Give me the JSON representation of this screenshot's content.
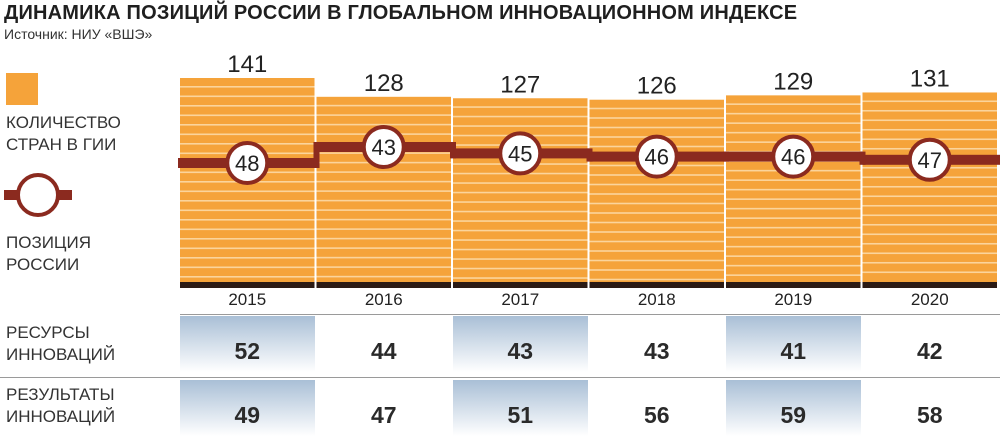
{
  "title": "ДИНАМИКА ПОЗИЦИЙ РОССИИ В ГЛОБАЛЬНОМ ИННОВАЦИОННОМ ИНДЕКСЕ",
  "source": "Источник: НИУ «ВШЭ»",
  "legend": {
    "countries_label_line1": "КОЛИЧЕСТВО",
    "countries_label_line2": "СТРАН В ГИИ",
    "position_label_line1": "ПОЗИЦИЯ",
    "position_label_line2": "РОССИИ"
  },
  "colors": {
    "bar": "#f5a33a",
    "bar_stripe": "#fbd49b",
    "line": "#8b2a1f",
    "base": "#2b1a14",
    "highlight_top": "#a9bfd6",
    "highlight_bottom": "#ffffff"
  },
  "chart_data": {
    "type": "bar",
    "categories": [
      "2015",
      "2016",
      "2017",
      "2018",
      "2019",
      "2020"
    ],
    "series": [
      {
        "name": "КОЛИЧЕСТВО СТРАН В ГИИ",
        "values": [
          141,
          128,
          127,
          126,
          129,
          131
        ]
      },
      {
        "name": "ПОЗИЦИЯ РОССИИ",
        "values": [
          48,
          43,
          45,
          46,
          46,
          47
        ]
      }
    ]
  },
  "table": {
    "rows": [
      {
        "label_line1": "РЕСУРСЫ",
        "label_line2": "ИННОВАЦИЙ",
        "values": [
          "52",
          "44",
          "43",
          "43",
          "41",
          "42"
        ]
      },
      {
        "label_line1": "РЕЗУЛЬТАТЫ",
        "label_line2": "ИННОВАЦИЙ",
        "values": [
          "49",
          "47",
          "51",
          "56",
          "59",
          "58"
        ]
      }
    ]
  }
}
